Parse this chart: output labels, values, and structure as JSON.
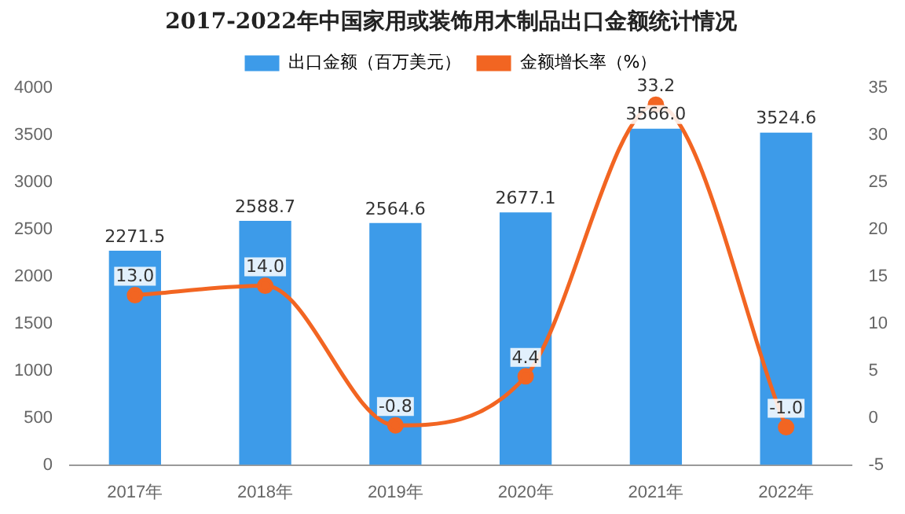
{
  "chart_data": {
    "type": "bar",
    "title": "2017-2022年中国家用或装饰用木制品出口金额统计情况",
    "categories": [
      "2017年",
      "2018年",
      "2019年",
      "2020年",
      "2021年",
      "2022年"
    ],
    "series": [
      {
        "name": "出口金额（百万美元）",
        "color": "#3d9be9",
        "values": [
          2271.5,
          2588.7,
          2564.6,
          2677.1,
          3566.0,
          3524.6
        ],
        "value_labels": [
          "2271.5",
          "2588.7",
          "2564.6",
          "2677.1",
          "3566.0",
          "3524.6"
        ]
      },
      {
        "name": "金额增长率（%）",
        "type": "line",
        "axis": "y2",
        "color": "#f26522",
        "values": [
          13.0,
          14.0,
          -0.8,
          4.4,
          33.2,
          -1.0
        ],
        "value_labels": [
          "13.0",
          "14.0",
          "-0.8",
          "4.4",
          "33.2",
          "-1.0"
        ]
      }
    ],
    "ylim": [
      0,
      4000
    ],
    "yticks": [
      0,
      500,
      1000,
      1500,
      2000,
      2500,
      3000,
      3500,
      4000
    ],
    "y2lim": [
      -5,
      35
    ],
    "y2ticks": [
      -5,
      0,
      5,
      10,
      15,
      20,
      25,
      30,
      35
    ],
    "legend": "top",
    "marker": "circle",
    "grid": false
  }
}
